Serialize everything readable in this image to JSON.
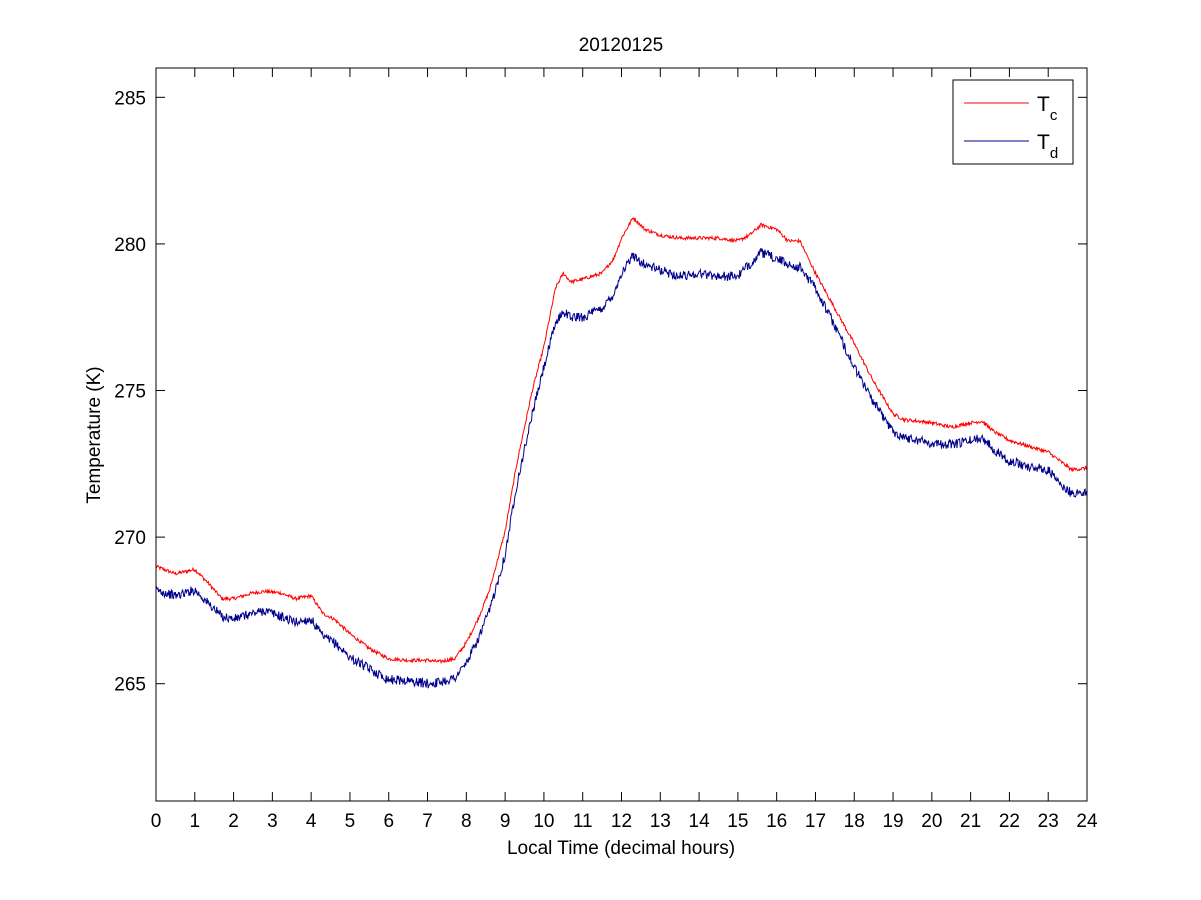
{
  "figure": {
    "background": "#ffffff",
    "axes_color": "#000000"
  },
  "chart_data": {
    "type": "line",
    "title": "20120125",
    "xlabel": "Local Time (decimal hours)",
    "ylabel": "Temperature (K)",
    "xlim": [
      0,
      24
    ],
    "ylim": [
      261,
      286
    ],
    "xticks": [
      0,
      1,
      2,
      3,
      4,
      5,
      6,
      7,
      8,
      9,
      10,
      11,
      12,
      13,
      14,
      15,
      16,
      17,
      18,
      19,
      20,
      21,
      22,
      23,
      24
    ],
    "yticks": [
      265,
      270,
      275,
      280,
      285
    ],
    "grid": false,
    "legend_position": "top-right",
    "series": [
      {
        "name": "T",
        "subscript": "c",
        "color": "#ff0000",
        "noise": 0.06,
        "x": [
          0,
          0.5,
          1.0,
          1.3,
          1.7,
          2.0,
          2.5,
          2.8,
          3.2,
          3.6,
          4.0,
          4.3,
          4.6,
          5.0,
          5.5,
          6.0,
          6.5,
          7.0,
          7.3,
          7.7,
          8.0,
          8.3,
          8.6,
          9.0,
          9.3,
          9.7,
          10.0,
          10.3,
          10.5,
          10.7,
          11.0,
          11.5,
          11.8,
          12.0,
          12.3,
          12.6,
          13.0,
          13.5,
          14.0,
          14.5,
          15.0,
          15.3,
          15.6,
          16.0,
          16.3,
          16.6,
          17.0,
          17.5,
          18.0,
          18.5,
          19.0,
          19.3,
          19.7,
          20.0,
          20.5,
          21.0,
          21.3,
          21.6,
          22.0,
          22.5,
          23.0,
          23.3,
          23.6,
          24.0
        ],
        "y": [
          269.0,
          268.75,
          268.9,
          268.5,
          267.9,
          267.9,
          268.1,
          268.15,
          268.1,
          267.9,
          268.0,
          267.4,
          267.2,
          266.7,
          266.2,
          265.85,
          265.8,
          265.8,
          265.75,
          265.85,
          266.4,
          267.2,
          268.2,
          270.2,
          272.5,
          275.0,
          276.5,
          278.5,
          279.0,
          278.7,
          278.8,
          279.0,
          279.5,
          280.2,
          280.9,
          280.5,
          280.3,
          280.2,
          280.2,
          280.2,
          280.1,
          280.3,
          280.65,
          280.5,
          280.1,
          280.1,
          279.0,
          277.8,
          276.6,
          275.3,
          274.2,
          274.0,
          273.95,
          273.9,
          273.75,
          273.9,
          273.95,
          273.6,
          273.3,
          273.1,
          272.9,
          272.6,
          272.3,
          272.35
        ]
      },
      {
        "name": "T",
        "subscript": "d",
        "color": "#00008b",
        "noise": 0.16,
        "x": [
          0,
          0.5,
          1.0,
          1.3,
          1.7,
          2.0,
          2.5,
          2.8,
          3.2,
          3.6,
          4.0,
          4.3,
          4.6,
          5.0,
          5.5,
          6.0,
          6.5,
          7.0,
          7.3,
          7.7,
          8.0,
          8.3,
          8.6,
          9.0,
          9.3,
          9.7,
          10.0,
          10.3,
          10.5,
          10.7,
          11.0,
          11.5,
          11.8,
          12.0,
          12.3,
          12.6,
          13.0,
          13.5,
          14.0,
          14.5,
          15.0,
          15.3,
          15.6,
          16.0,
          16.3,
          16.6,
          17.0,
          17.5,
          18.0,
          18.5,
          19.0,
          19.3,
          19.7,
          20.0,
          20.5,
          21.0,
          21.3,
          21.6,
          22.0,
          22.5,
          23.0,
          23.3,
          23.6,
          24.0
        ],
        "y": [
          268.2,
          268.0,
          268.2,
          267.8,
          267.3,
          267.2,
          267.4,
          267.5,
          267.3,
          267.1,
          267.2,
          266.6,
          266.4,
          265.9,
          265.5,
          265.15,
          265.1,
          265.0,
          265.05,
          265.2,
          265.7,
          266.5,
          267.5,
          269.4,
          271.8,
          274.2,
          275.8,
          277.3,
          277.7,
          277.5,
          277.5,
          277.8,
          278.3,
          279.0,
          279.6,
          279.3,
          279.1,
          278.9,
          279.0,
          278.9,
          278.9,
          279.3,
          279.7,
          279.5,
          279.3,
          279.2,
          278.5,
          277.2,
          275.8,
          274.6,
          273.6,
          273.4,
          273.3,
          273.2,
          273.15,
          273.3,
          273.4,
          273.0,
          272.6,
          272.4,
          272.3,
          271.8,
          271.5,
          271.55
        ]
      }
    ]
  }
}
